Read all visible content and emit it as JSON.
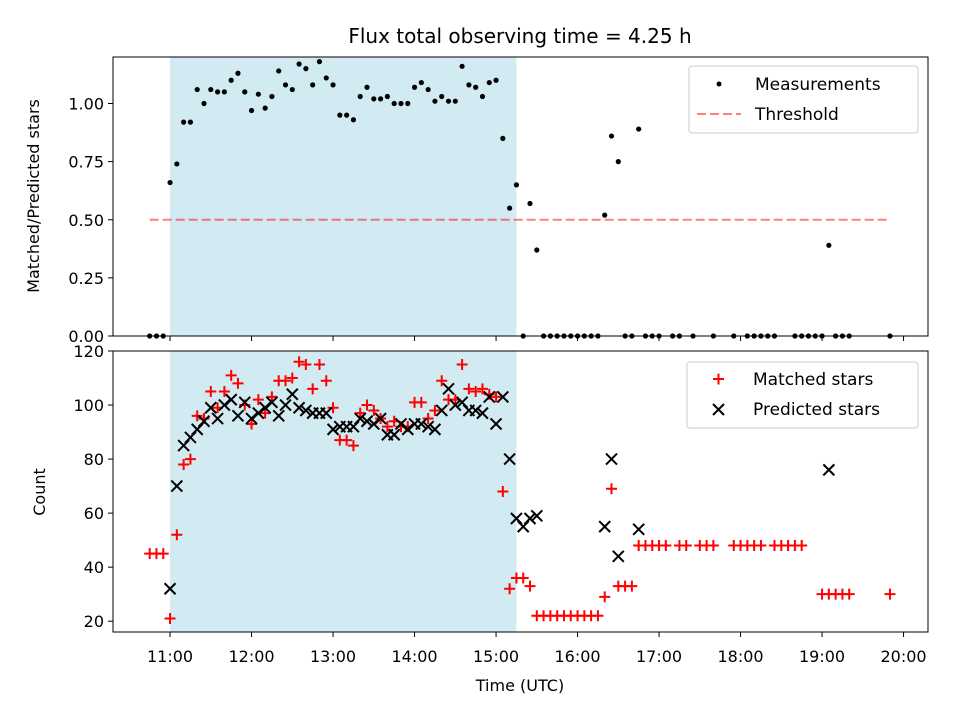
{
  "chart_data": [
    {
      "type": "scatter",
      "title": "Flux total observing time = 4.25 h",
      "xlabel": "",
      "ylabel": "Matched/Predicted stars",
      "xlim": [
        "10:18",
        "20:18"
      ],
      "ylim": [
        0,
        1.2
      ],
      "yticks": [
        "0.00",
        "0.25",
        "0.50",
        "0.75",
        "1.00"
      ],
      "shaded_span": {
        "start": "11:00",
        "end": "15:15",
        "color": "#add8e6"
      },
      "legend": {
        "position": "top-right",
        "entries": [
          "Measurements",
          "Threshold"
        ]
      },
      "series": [
        {
          "name": "Measurements",
          "style": "dot",
          "color": "#000000",
          "points": [
            [
              "10:45",
              0
            ],
            [
              "10:50",
              0
            ],
            [
              "10:55",
              0
            ],
            [
              "11:00",
              0.66
            ],
            [
              "11:05",
              0.74
            ],
            [
              "11:10",
              0.92
            ],
            [
              "11:15",
              0.92
            ],
            [
              "11:20",
              1.06
            ],
            [
              "11:25",
              1.0
            ],
            [
              "11:30",
              1.06
            ],
            [
              "11:35",
              1.05
            ],
            [
              "11:40",
              1.05
            ],
            [
              "11:45",
              1.1
            ],
            [
              "11:50",
              1.13
            ],
            [
              "11:55",
              1.05
            ],
            [
              "12:00",
              0.97
            ],
            [
              "12:05",
              1.04
            ],
            [
              "12:10",
              0.98
            ],
            [
              "12:15",
              1.03
            ],
            [
              "12:20",
              1.14
            ],
            [
              "12:25",
              1.08
            ],
            [
              "12:30",
              1.06
            ],
            [
              "12:35",
              1.17
            ],
            [
              "12:40",
              1.15
            ],
            [
              "12:45",
              1.08
            ],
            [
              "12:50",
              1.18
            ],
            [
              "12:55",
              1.11
            ],
            [
              "13:00",
              1.08
            ],
            [
              "13:05",
              0.95
            ],
            [
              "13:10",
              0.95
            ],
            [
              "13:15",
              0.93
            ],
            [
              "13:20",
              1.03
            ],
            [
              "13:25",
              1.07
            ],
            [
              "13:30",
              1.02
            ],
            [
              "13:35",
              1.02
            ],
            [
              "13:40",
              1.03
            ],
            [
              "13:45",
              1.0
            ],
            [
              "13:50",
              1.0
            ],
            [
              "13:55",
              1.0
            ],
            [
              "14:00",
              1.07
            ],
            [
              "14:05",
              1.09
            ],
            [
              "14:10",
              1.06
            ],
            [
              "14:15",
              1.01
            ],
            [
              "14:20",
              1.03
            ],
            [
              "14:25",
              1.01
            ],
            [
              "14:30",
              1.01
            ],
            [
              "14:35",
              1.16
            ],
            [
              "14:40",
              1.08
            ],
            [
              "14:45",
              1.07
            ],
            [
              "14:50",
              1.03
            ],
            [
              "14:55",
              1.09
            ],
            [
              "15:00",
              1.1
            ],
            [
              "15:05",
              0.85
            ],
            [
              "15:10",
              0.55
            ],
            [
              "15:15",
              0.65
            ],
            [
              "15:20",
              0
            ],
            [
              "15:25",
              0.57
            ],
            [
              "15:30",
              0.37
            ],
            [
              "15:35",
              0
            ],
            [
              "15:40",
              0
            ],
            [
              "15:45",
              0
            ],
            [
              "15:50",
              0
            ],
            [
              "15:55",
              0
            ],
            [
              "16:00",
              0
            ],
            [
              "16:05",
              0
            ],
            [
              "16:10",
              0
            ],
            [
              "16:15",
              0
            ],
            [
              "16:20",
              0.52
            ],
            [
              "16:25",
              0.86
            ],
            [
              "16:30",
              0.75
            ],
            [
              "16:35",
              0
            ],
            [
              "16:40",
              0
            ],
            [
              "16:45",
              0.89
            ],
            [
              "16:50",
              0
            ],
            [
              "16:55",
              0
            ],
            [
              "17:00",
              0
            ],
            [
              "17:10",
              0
            ],
            [
              "17:15",
              0
            ],
            [
              "17:25",
              0
            ],
            [
              "17:40",
              0
            ],
            [
              "17:55",
              0
            ],
            [
              "18:05",
              0
            ],
            [
              "18:10",
              0
            ],
            [
              "18:15",
              0
            ],
            [
              "18:20",
              0
            ],
            [
              "18:25",
              0
            ],
            [
              "18:40",
              0
            ],
            [
              "18:45",
              0
            ],
            [
              "18:50",
              0
            ],
            [
              "18:55",
              0
            ],
            [
              "19:00",
              0
            ],
            [
              "19:05",
              0.39
            ],
            [
              "19:10",
              0
            ],
            [
              "19:15",
              0
            ],
            [
              "19:20",
              0
            ],
            [
              "19:50",
              0
            ]
          ]
        },
        {
          "name": "Threshold",
          "style": "dashed-line",
          "color": "#ff0000",
          "points": [
            [
              "10:45",
              0.5
            ],
            [
              "19:50",
              0.5
            ]
          ]
        }
      ]
    },
    {
      "type": "scatter",
      "title": "",
      "xlabel": "Time (UTC)",
      "ylabel": "Count",
      "xlim": [
        "10:18",
        "20:18"
      ],
      "ylim": [
        16,
        120
      ],
      "yticks": [
        "20",
        "40",
        "60",
        "80",
        "100",
        "120"
      ],
      "xticks": [
        "11:00",
        "12:00",
        "13:00",
        "14:00",
        "15:00",
        "16:00",
        "17:00",
        "18:00",
        "19:00",
        "20:00"
      ],
      "shaded_span": {
        "start": "11:00",
        "end": "15:15",
        "color": "#add8e6"
      },
      "legend": {
        "position": "top-right",
        "entries": [
          "Matched stars",
          "Predicted stars"
        ]
      },
      "series": [
        {
          "name": "Matched stars",
          "style": "plus",
          "color": "#ff0000",
          "points": [
            [
              "10:45",
              45
            ],
            [
              "10:50",
              45
            ],
            [
              "10:55",
              45
            ],
            [
              "11:00",
              21
            ],
            [
              "11:05",
              52
            ],
            [
              "11:10",
              78
            ],
            [
              "11:15",
              80
            ],
            [
              "11:20",
              96
            ],
            [
              "11:25",
              95
            ],
            [
              "11:30",
              105
            ],
            [
              "11:35",
              99
            ],
            [
              "11:40",
              105
            ],
            [
              "11:45",
              111
            ],
            [
              "11:50",
              108
            ],
            [
              "11:55",
              100
            ],
            [
              "12:00",
              93
            ],
            [
              "12:05",
              102
            ],
            [
              "12:10",
              97
            ],
            [
              "12:15",
              103
            ],
            [
              "12:20",
              109
            ],
            [
              "12:25",
              109
            ],
            [
              "12:30",
              110
            ],
            [
              "12:35",
              116
            ],
            [
              "12:40",
              115
            ],
            [
              "12:45",
              106
            ],
            [
              "12:50",
              115
            ],
            [
              "12:55",
              109
            ],
            [
              "13:00",
              99
            ],
            [
              "13:05",
              87
            ],
            [
              "13:10",
              87
            ],
            [
              "13:15",
              85
            ],
            [
              "13:20",
              97
            ],
            [
              "13:25",
              100
            ],
            [
              "13:30",
              98
            ],
            [
              "13:35",
              95
            ],
            [
              "13:40",
              92
            ],
            [
              "13:45",
              94
            ],
            [
              "13:50",
              92
            ],
            [
              "13:55",
              92
            ],
            [
              "14:00",
              101
            ],
            [
              "14:05",
              101
            ],
            [
              "14:10",
              95
            ],
            [
              "14:15",
              98
            ],
            [
              "14:20",
              109
            ],
            [
              "14:25",
              102
            ],
            [
              "14:30",
              102
            ],
            [
              "14:35",
              115
            ],
            [
              "14:40",
              106
            ],
            [
              "14:45",
              105
            ],
            [
              "14:50",
              106
            ],
            [
              "14:55",
              104
            ],
            [
              "15:00",
              103
            ],
            [
              "15:05",
              68
            ],
            [
              "15:10",
              32
            ],
            [
              "15:15",
              36
            ],
            [
              "15:20",
              36
            ],
            [
              "15:25",
              33
            ],
            [
              "15:30",
              22
            ],
            [
              "15:35",
              22
            ],
            [
              "15:40",
              22
            ],
            [
              "15:45",
              22
            ],
            [
              "15:50",
              22
            ],
            [
              "15:55",
              22
            ],
            [
              "16:00",
              22
            ],
            [
              "16:05",
              22
            ],
            [
              "16:10",
              22
            ],
            [
              "16:15",
              22
            ],
            [
              "16:20",
              29
            ],
            [
              "16:25",
              69
            ],
            [
              "16:30",
              33
            ],
            [
              "16:35",
              33
            ],
            [
              "16:40",
              33
            ],
            [
              "16:45",
              48
            ],
            [
              "16:50",
              48
            ],
            [
              "16:55",
              48
            ],
            [
              "17:00",
              48
            ],
            [
              "17:05",
              48
            ],
            [
              "17:15",
              48
            ],
            [
              "17:20",
              48
            ],
            [
              "17:30",
              48
            ],
            [
              "17:35",
              48
            ],
            [
              "17:40",
              48
            ],
            [
              "17:55",
              48
            ],
            [
              "18:00",
              48
            ],
            [
              "18:05",
              48
            ],
            [
              "18:10",
              48
            ],
            [
              "18:15",
              48
            ],
            [
              "18:25",
              48
            ],
            [
              "18:30",
              48
            ],
            [
              "18:35",
              48
            ],
            [
              "18:40",
              48
            ],
            [
              "18:45",
              48
            ],
            [
              "19:00",
              30
            ],
            [
              "19:05",
              30
            ],
            [
              "19:10",
              30
            ],
            [
              "19:15",
              30
            ],
            [
              "19:20",
              30
            ],
            [
              "19:50",
              30
            ]
          ]
        },
        {
          "name": "Predicted stars",
          "style": "x",
          "color": "#000000",
          "points": [
            [
              "11:00",
              32
            ],
            [
              "11:05",
              70
            ],
            [
              "11:10",
              85
            ],
            [
              "11:15",
              88
            ],
            [
              "11:20",
              91
            ],
            [
              "11:25",
              94
            ],
            [
              "11:30",
              99
            ],
            [
              "11:35",
              95
            ],
            [
              "11:40",
              100
            ],
            [
              "11:45",
              102
            ],
            [
              "11:50",
              96
            ],
            [
              "11:55",
              101
            ],
            [
              "12:00",
              95
            ],
            [
              "12:05",
              97
            ],
            [
              "12:10",
              99
            ],
            [
              "12:15",
              101
            ],
            [
              "12:20",
              96
            ],
            [
              "12:25",
              100
            ],
            [
              "12:30",
              104
            ],
            [
              "12:35",
              99
            ],
            [
              "12:40",
              98
            ],
            [
              "12:45",
              97
            ],
            [
              "12:50",
              97
            ],
            [
              "12:55",
              97
            ],
            [
              "13:00",
              91
            ],
            [
              "13:05",
              92
            ],
            [
              "13:10",
              92
            ],
            [
              "13:15",
              92
            ],
            [
              "13:20",
              95
            ],
            [
              "13:25",
              94
            ],
            [
              "13:30",
              93
            ],
            [
              "13:35",
              95
            ],
            [
              "13:40",
              89
            ],
            [
              "13:45",
              89
            ],
            [
              "13:50",
              93
            ],
            [
              "13:55",
              91
            ],
            [
              "14:00",
              93
            ],
            [
              "14:05",
              93
            ],
            [
              "14:10",
              92
            ],
            [
              "14:15",
              91
            ],
            [
              "14:20",
              98
            ],
            [
              "14:25",
              106
            ],
            [
              "14:30",
              100
            ],
            [
              "14:35",
              101
            ],
            [
              "14:40",
              98
            ],
            [
              "14:45",
              98
            ],
            [
              "14:50",
              97
            ],
            [
              "14:55",
              103
            ],
            [
              "15:00",
              93
            ],
            [
              "15:05",
              103
            ],
            [
              "15:10",
              80
            ],
            [
              "15:15",
              58
            ],
            [
              "15:20",
              55
            ],
            [
              "15:25",
              58
            ],
            [
              "15:30",
              59
            ],
            [
              "16:20",
              55
            ],
            [
              "16:25",
              80
            ],
            [
              "16:30",
              44
            ],
            [
              "16:45",
              54
            ],
            [
              "19:05",
              76
            ]
          ]
        }
      ]
    }
  ]
}
